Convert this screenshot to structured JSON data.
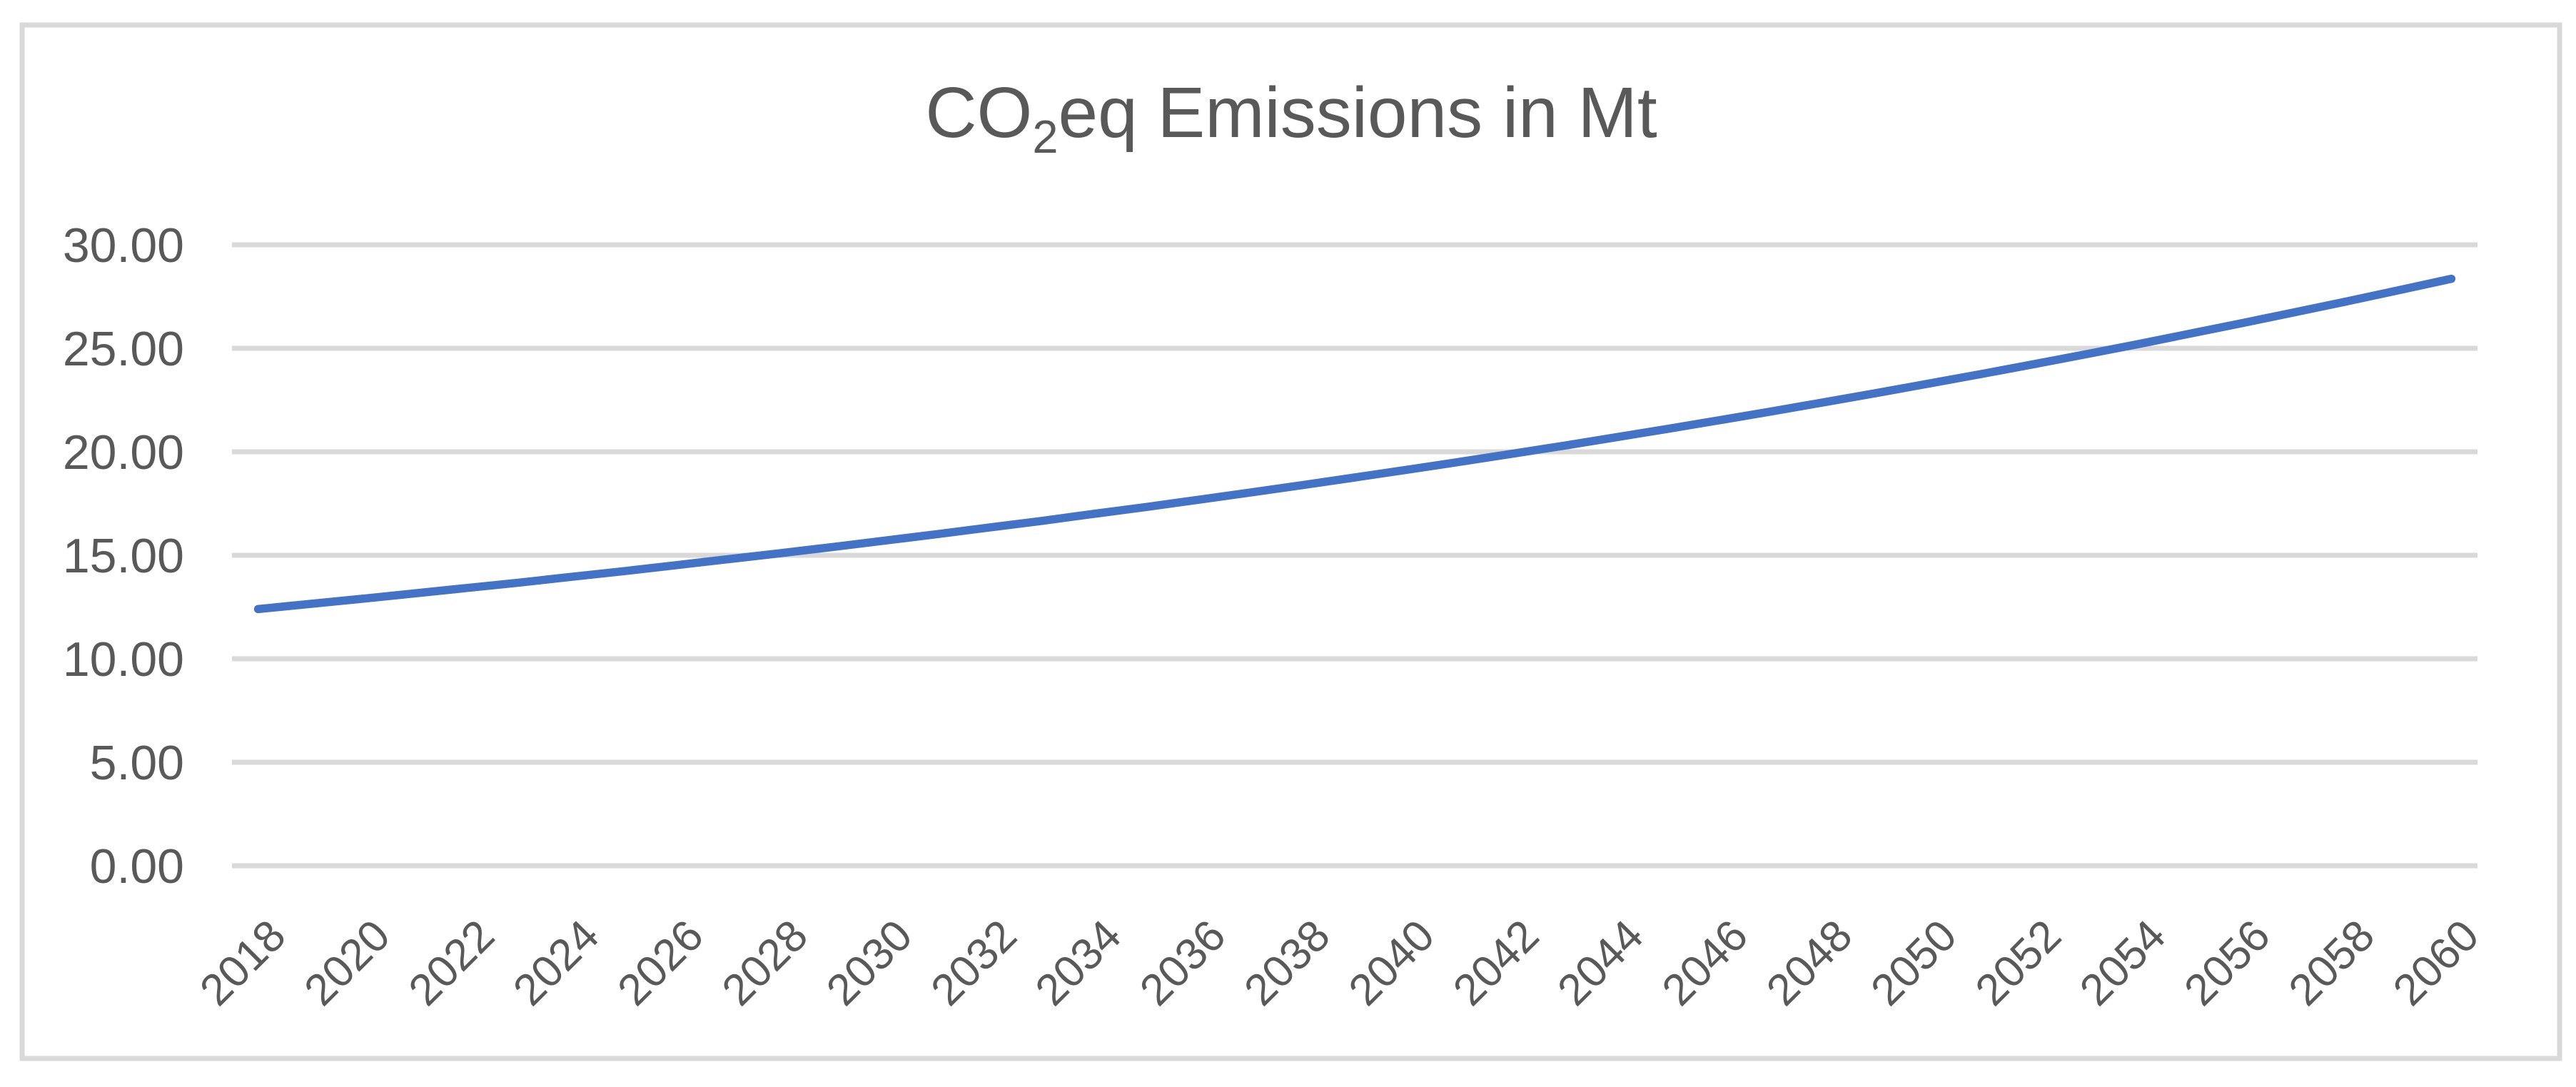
{
  "window": {
    "background": "#FFFFFF"
  },
  "title_parts": {
    "pre": "CO",
    "sub": "2",
    "post": "eq Emissions in Mt"
  },
  "chart_data": {
    "type": "line",
    "title": "CO2eq Emissions in Mt",
    "xlabel": "",
    "ylabel": "",
    "x": [
      2018,
      2019,
      2020,
      2021,
      2022,
      2023,
      2024,
      2025,
      2026,
      2027,
      2028,
      2029,
      2030,
      2031,
      2032,
      2033,
      2034,
      2035,
      2036,
      2037,
      2038,
      2039,
      2040,
      2041,
      2042,
      2043,
      2044,
      2045,
      2046,
      2047,
      2048,
      2049,
      2050,
      2051,
      2052,
      2053,
      2054,
      2055,
      2056,
      2057,
      2058,
      2059,
      2060
    ],
    "series": [
      {
        "name": "CO2eq Emissions (Mt)",
        "values": [
          12.4,
          12.65,
          12.9,
          13.16,
          13.42,
          13.68,
          13.96,
          14.23,
          14.52,
          14.81,
          15.1,
          15.4,
          15.71,
          16.02,
          16.34,
          16.66,
          17.0,
          17.33,
          17.68,
          18.03,
          18.39,
          18.76,
          19.13,
          19.51,
          19.9,
          20.29,
          20.7,
          21.11,
          21.53,
          21.96,
          22.4,
          22.84,
          23.3,
          23.76,
          24.23,
          24.71,
          25.2,
          25.71,
          26.22,
          26.74,
          27.27,
          27.81,
          28.36
        ]
      }
    ],
    "ylim": [
      0,
      30
    ],
    "y_ticks": [
      "0.00",
      "5.00",
      "10.00",
      "15.00",
      "20.00",
      "25.00",
      "30.00"
    ],
    "x_tick_step": 2,
    "x_tick_labels": [
      "2018",
      "2020",
      "2022",
      "2024",
      "2026",
      "2028",
      "2030",
      "2032",
      "2034",
      "2036",
      "2038",
      "2040",
      "2042",
      "2044",
      "2046",
      "2048",
      "2050",
      "2052",
      "2054",
      "2056",
      "2058",
      "2060"
    ],
    "x_tick_rotation_deg": 45,
    "grid": true,
    "legend": false,
    "colors": {
      "line": "#4472C4",
      "grid": "#D9D9D9",
      "border": "#D9D9D9",
      "text": "#595959",
      "background": "#FFFFFF"
    }
  }
}
